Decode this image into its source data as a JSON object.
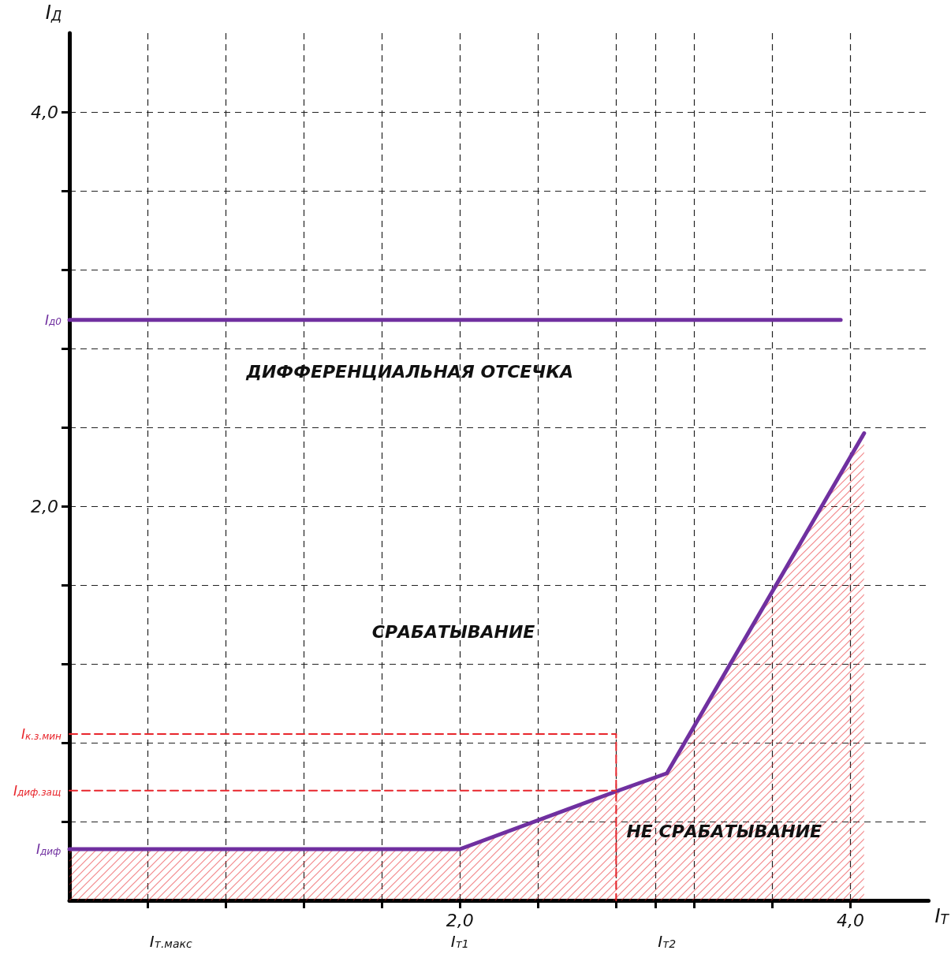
{
  "chart_data": {
    "type": "line",
    "xlabel": "I$_{Т}$",
    "ylabel": "I$_{Д}$",
    "xlim": [
      0,
      4.4
    ],
    "ylim": [
      0,
      4.4
    ],
    "xticks": [
      {
        "value": 0.4,
        "label": null
      },
      {
        "value": 0.8,
        "label": null
      },
      {
        "value": 1.2,
        "label": null
      },
      {
        "value": 1.6,
        "label": null
      },
      {
        "value": 2,
        "label": "2,0"
      },
      {
        "value": 2.4,
        "label": null
      },
      {
        "value": 2.8,
        "label": null
      },
      {
        "value": 3,
        "label": null
      },
      {
        "value": 3.2,
        "label": null
      },
      {
        "value": 3.6,
        "label": null
      },
      {
        "value": 4,
        "label": "4,0"
      }
    ],
    "yticks": [
      {
        "value": 0.4,
        "label": null
      },
      {
        "value": 0.8,
        "label": null
      },
      {
        "value": 1.2,
        "label": null
      },
      {
        "value": 1.6,
        "label": null
      },
      {
        "value": 2,
        "label": "2,0"
      },
      {
        "value": 2.4,
        "label": null
      },
      {
        "value": 2.8,
        "label": null
      },
      {
        "value": 3.2,
        "label": null
      },
      {
        "value": 3.6,
        "label": null
      },
      {
        "value": 4,
        "label": "4,0"
      }
    ],
    "grid": true,
    "marker": "none",
    "line_style": "solid",
    "series": [
      {
        "name": "I$_{диф}$",
        "type": "area",
        "color": "#7030a0",
        "x": [
          0,
          2,
          2.8,
          3.06,
          4.07
        ],
        "values": [
          0.26,
          0.26,
          0.553,
          0.645,
          2.37
        ]
      },
      {
        "name": "I$_{д0}$",
        "color": "#7030a0",
        "x": [
          0,
          3.95
        ],
        "values": [
          2.945,
          2.945
        ]
      },
      {
        "name": "I$_{к.з.мин}$",
        "color": "#e8262c",
        "line_style": "dashed",
        "x": [
          0,
          2.8,
          2.8
        ],
        "values": [
          0.844,
          0.844,
          0
        ]
      },
      {
        "name": "I$_{диф.защ}$",
        "color": "#e8262c",
        "line_style": "dashed",
        "x": [
          0,
          2.8
        ],
        "values": [
          0.557,
          0.557
        ]
      }
    ],
    "annotations": [
      "ДИФФЕРЕНЦИАЛЬНАЯ ОТСЕЧКА",
      "СРАБАТЫВАНИЕ",
      "НЕ СРАБАТЫВАНИЕ",
      {
        "text": "I$_{т.макс}$",
        "x": 0.52,
        "y": 0
      },
      {
        "text": "I$_{т1}$",
        "x": 2,
        "y": 0
      },
      {
        "text": "I$_{т2}$",
        "x": 3.06,
        "y": 0
      }
    ]
  }
}
